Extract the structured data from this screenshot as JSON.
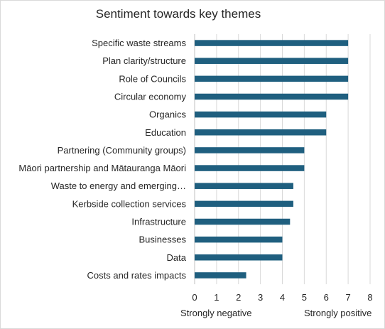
{
  "chart_data": {
    "type": "bar",
    "orientation": "horizontal",
    "title": "Sentiment towards key themes",
    "categories": [
      "Specific waste streams",
      "Plan clarity/structure",
      "Role of Councils",
      "Circular economy",
      "Organics",
      "Education",
      "Partnering (Community groups)",
      "Māori partnership and  Mātauranga Māori",
      "Waste to energy and emerging…",
      "Kerbside collection services",
      "Infrastructure",
      "Businesses",
      "Data",
      "Costs and rates impacts"
    ],
    "values": [
      7,
      7,
      7,
      7,
      6,
      6,
      5,
      5,
      4.5,
      4.5,
      4.35,
      4,
      4,
      2.35
    ],
    "xlim": [
      0,
      8
    ],
    "xticks": [
      "0",
      "1",
      "2",
      "3",
      "4",
      "5",
      "6",
      "7",
      "8"
    ],
    "grid": "vertical",
    "bar_color": "#1f5f7f",
    "xaxis_left_label": "Strongly negative",
    "xaxis_right_label": "Strongly positive"
  }
}
